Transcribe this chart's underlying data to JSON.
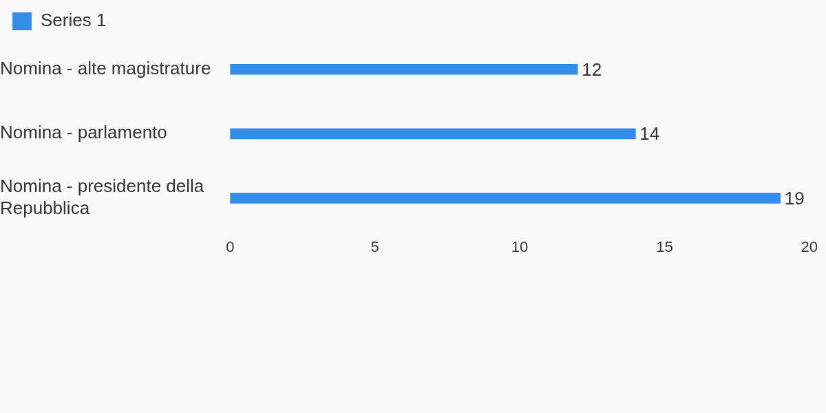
{
  "chart_data": {
    "type": "bar",
    "orientation": "horizontal",
    "categories": [
      "Nomina - alte magistrature",
      "Nomina - parlamento",
      "Nomina - presidente della Repubblica"
    ],
    "series": [
      {
        "name": "Series 1",
        "color": "#348ceb",
        "values": [
          12,
          14,
          19
        ]
      }
    ],
    "xlim": [
      0,
      20
    ],
    "xticks": [
      0,
      5,
      10,
      15,
      20
    ],
    "grid": false,
    "legend": "top left",
    "data_labels": true
  }
}
